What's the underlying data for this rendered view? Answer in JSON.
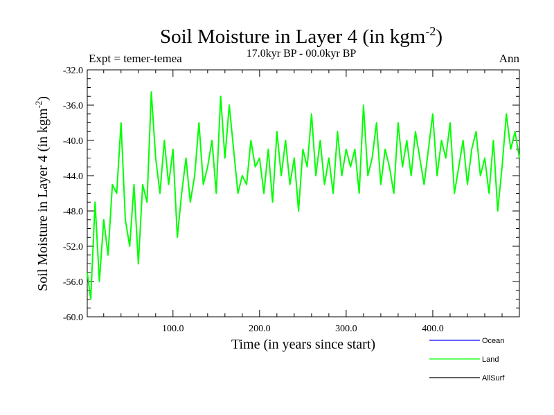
{
  "chart_data": {
    "type": "line",
    "title": "Soil Moisture in Layer 4 (in kgm",
    "title_exponent": "-2",
    "title_close": ")",
    "subtitle": "17.0kyr BP - 00.0kyr BP",
    "experiment_label": "Expt = temer-temea",
    "season_label": "Ann",
    "xlabel": "Time (in years since start)",
    "ylabel": "Soil Moisture in Layer 4 (in kgm",
    "ylabel_exponent": "-2",
    "ylabel_close": ")",
    "xlim": [
      1,
      500
    ],
    "ylim": [
      -60,
      -32
    ],
    "x_ticks": [
      100,
      200,
      300,
      400
    ],
    "x_tick_labels": [
      "100.0",
      "200.0",
      "300.0",
      "400.0"
    ],
    "y_ticks": [
      -32,
      -36,
      -40,
      -44,
      -48,
      -52,
      -56,
      -60
    ],
    "y_tick_labels": [
      "-32.0",
      "-36.0",
      "-40.0",
      "-44.0",
      "-48.0",
      "-52.0",
      "-56.0",
      "-60.0"
    ],
    "x_minor_step": 20,
    "y_minor_step": 1,
    "grid": false,
    "legend_position": "bottom-right",
    "legend": [
      {
        "name": "Ocean",
        "color": "#0000ff"
      },
      {
        "name": "Land",
        "color": "#00ff00"
      },
      {
        "name": "AllSurf",
        "color": "#000000"
      }
    ],
    "series": [
      {
        "name": "Land",
        "color": "#00ff00",
        "x": [
          1,
          5,
          10,
          15,
          20,
          25,
          30,
          35,
          40,
          45,
          50,
          55,
          60,
          65,
          70,
          75,
          80,
          85,
          90,
          95,
          100,
          105,
          110,
          115,
          120,
          125,
          130,
          135,
          140,
          145,
          150,
          155,
          160,
          165,
          170,
          175,
          180,
          185,
          190,
          195,
          200,
          205,
          210,
          215,
          220,
          225,
          230,
          235,
          240,
          245,
          250,
          255,
          260,
          265,
          270,
          275,
          280,
          285,
          290,
          295,
          300,
          305,
          310,
          315,
          320,
          325,
          330,
          335,
          340,
          345,
          350,
          355,
          360,
          365,
          370,
          375,
          380,
          385,
          390,
          395,
          400,
          405,
          410,
          415,
          420,
          425,
          430,
          435,
          440,
          445,
          450,
          455,
          460,
          465,
          470,
          475,
          480,
          485,
          490,
          495,
          500
        ],
        "values": [
          -55,
          -58,
          -47,
          -56,
          -49,
          -53,
          -45,
          -46,
          -38,
          -49,
          -52,
          -45,
          -54,
          -45,
          -47,
          -34.5,
          -42,
          -46,
          -40,
          -45,
          -41,
          -51,
          -46,
          -42,
          -47,
          -44,
          -38,
          -45,
          -43,
          -40,
          -46,
          -35,
          -42,
          -36,
          -41,
          -46,
          -44,
          -45,
          -40,
          -43,
          -42,
          -46,
          -41,
          -47,
          -39,
          -44,
          -40,
          -45,
          -42,
          -48,
          -41,
          -43,
          -37,
          -44,
          -40,
          -45,
          -42,
          -46,
          -39,
          -44,
          -41,
          -43,
          -41,
          -46,
          -36,
          -44,
          -42,
          -38,
          -45,
          -41,
          -43,
          -46,
          -38,
          -43,
          -40,
          -44,
          -39,
          -42,
          -45,
          -41,
          -37,
          -44,
          -40,
          -42,
          -38,
          -46,
          -43,
          -40,
          -45,
          -41,
          -39,
          -44,
          -42,
          -46,
          -40,
          -48,
          -43,
          -37,
          -41,
          -39,
          -42
        ]
      }
    ]
  }
}
